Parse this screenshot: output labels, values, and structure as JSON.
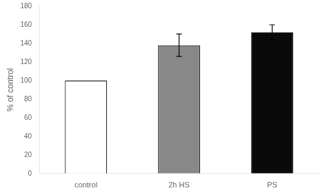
{
  "chart_data": {
    "type": "bar",
    "categories": [
      "control",
      "2h HS",
      "PS"
    ],
    "values": [
      100,
      138,
      152
    ],
    "errors": [
      0,
      12,
      8
    ],
    "colors": [
      "#ffffff",
      "#888888",
      "#0a0a0a"
    ],
    "ylabel": "% of control",
    "ylim": [
      0,
      180
    ],
    "yticks": [
      0,
      20,
      40,
      60,
      80,
      100,
      120,
      140,
      160,
      180
    ],
    "grid": false
  }
}
